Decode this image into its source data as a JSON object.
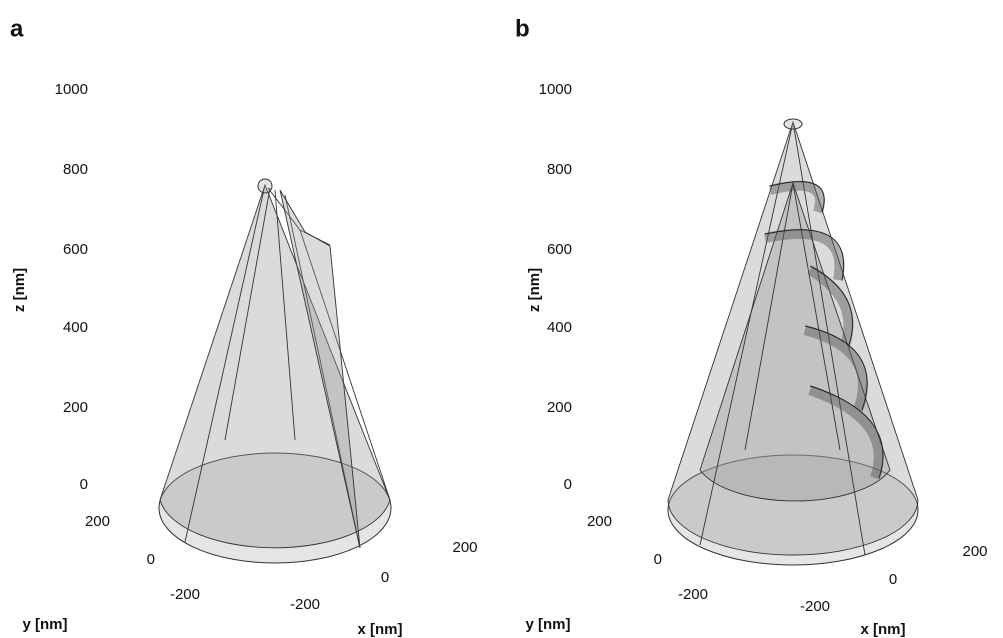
{
  "panels": [
    {
      "label": "a",
      "z_label": "z [nm]",
      "y_label": "y [nm]",
      "x_label": "x [nm]",
      "z_ticks": [
        1000,
        800,
        600,
        400,
        200,
        0
      ],
      "y_ticks": [
        200,
        0,
        -200
      ],
      "x_ticks": [
        200,
        0,
        -200
      ]
    },
    {
      "label": "b",
      "z_label": "z [nm]",
      "y_label": "y [nm]",
      "x_label": "x [nm]",
      "z_ticks": [
        1000,
        800,
        600,
        400,
        200,
        0
      ],
      "y_ticks": [
        200,
        0,
        -200
      ],
      "x_ticks": [
        200,
        0,
        -200
      ]
    }
  ]
}
